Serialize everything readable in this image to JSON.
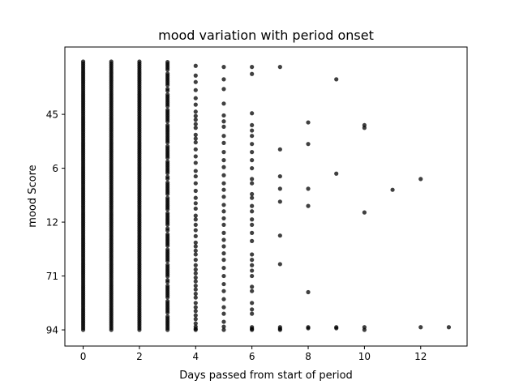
{
  "chart_data": {
    "type": "scatter",
    "title": "mood variation with period onset",
    "xlabel": "Days passed from start of period",
    "ylabel": "mood Score",
    "xlim": [
      -0.65,
      13.65
    ],
    "x_ticks": [
      0,
      2,
      4,
      6,
      8,
      10,
      12
    ],
    "y_tick_labels": [
      "94",
      "71",
      "12",
      "6",
      "45"
    ],
    "y_tick_positions": [
      0,
      1,
      2,
      3,
      4
    ],
    "ylim": [
      -0.3,
      5.25
    ],
    "marker_color": "#000000",
    "marker_alpha": 0.75,
    "grid": false,
    "legend": "none",
    "columns": [
      {
        "x": 0,
        "y_min": 0.0,
        "y_max": 4.98,
        "dense": true
      },
      {
        "x": 1,
        "y_min": 0.0,
        "y_max": 4.98,
        "dense": true
      },
      {
        "x": 2,
        "y_min": 0.0,
        "y_max": 4.98,
        "dense": true
      },
      {
        "x": 3,
        "y_min": 0.0,
        "y_max": 4.97,
        "dense": true,
        "density": 0.85
      }
    ],
    "points": [
      {
        "x": 4,
        "y": 4.9
      },
      {
        "x": 4,
        "y": 4.72
      },
      {
        "x": 4,
        "y": 4.6
      },
      {
        "x": 4,
        "y": 4.45
      },
      {
        "x": 4,
        "y": 4.3
      },
      {
        "x": 4,
        "y": 4.18
      },
      {
        "x": 4,
        "y": 4.05
      },
      {
        "x": 4,
        "y": 3.97
      },
      {
        "x": 4,
        "y": 3.9
      },
      {
        "x": 4,
        "y": 3.82
      },
      {
        "x": 4,
        "y": 3.75
      },
      {
        "x": 4,
        "y": 3.62
      },
      {
        "x": 4,
        "y": 3.55
      },
      {
        "x": 4,
        "y": 3.48
      },
      {
        "x": 4,
        "y": 3.35
      },
      {
        "x": 4,
        "y": 3.22
      },
      {
        "x": 4,
        "y": 3.1
      },
      {
        "x": 4,
        "y": 2.95
      },
      {
        "x": 4,
        "y": 2.85
      },
      {
        "x": 4,
        "y": 2.72
      },
      {
        "x": 4,
        "y": 2.58
      },
      {
        "x": 4,
        "y": 2.45
      },
      {
        "x": 4,
        "y": 2.35
      },
      {
        "x": 4,
        "y": 2.25
      },
      {
        "x": 4,
        "y": 2.12
      },
      {
        "x": 4,
        "y": 2.05
      },
      {
        "x": 4,
        "y": 1.95
      },
      {
        "x": 4,
        "y": 1.85
      },
      {
        "x": 4,
        "y": 1.74
      },
      {
        "x": 4,
        "y": 1.62
      },
      {
        "x": 4,
        "y": 1.55
      },
      {
        "x": 4,
        "y": 1.47
      },
      {
        "x": 4,
        "y": 1.4
      },
      {
        "x": 4,
        "y": 1.3
      },
      {
        "x": 4,
        "y": 1.2
      },
      {
        "x": 4,
        "y": 1.12
      },
      {
        "x": 4,
        "y": 1.05
      },
      {
        "x": 4,
        "y": 0.97
      },
      {
        "x": 4,
        "y": 0.9
      },
      {
        "x": 4,
        "y": 0.82
      },
      {
        "x": 4,
        "y": 0.75
      },
      {
        "x": 4,
        "y": 0.67
      },
      {
        "x": 4,
        "y": 0.6
      },
      {
        "x": 4,
        "y": 0.5
      },
      {
        "x": 4,
        "y": 0.42
      },
      {
        "x": 4,
        "y": 0.35
      },
      {
        "x": 4,
        "y": 0.27
      },
      {
        "x": 4,
        "y": 0.2
      },
      {
        "x": 4,
        "y": 0.12
      },
      {
        "x": 4,
        "y": 0.06
      },
      {
        "x": 4,
        "y": 0.02
      },
      {
        "x": 4,
        "y": 0.0
      },
      {
        "x": 5,
        "y": 4.88
      },
      {
        "x": 5,
        "y": 4.65
      },
      {
        "x": 5,
        "y": 4.47
      },
      {
        "x": 5,
        "y": 4.2
      },
      {
        "x": 5,
        "y": 3.98
      },
      {
        "x": 5,
        "y": 3.87
      },
      {
        "x": 5,
        "y": 3.77
      },
      {
        "x": 5,
        "y": 3.6
      },
      {
        "x": 5,
        "y": 3.47
      },
      {
        "x": 5,
        "y": 3.3
      },
      {
        "x": 5,
        "y": 3.15
      },
      {
        "x": 5,
        "y": 3.02
      },
      {
        "x": 5,
        "y": 2.87
      },
      {
        "x": 5,
        "y": 2.72
      },
      {
        "x": 5,
        "y": 2.6
      },
      {
        "x": 5,
        "y": 2.47
      },
      {
        "x": 5,
        "y": 2.32
      },
      {
        "x": 5,
        "y": 2.2
      },
      {
        "x": 5,
        "y": 2.07
      },
      {
        "x": 5,
        "y": 1.95
      },
      {
        "x": 5,
        "y": 1.8
      },
      {
        "x": 5,
        "y": 1.67
      },
      {
        "x": 5,
        "y": 1.55
      },
      {
        "x": 5,
        "y": 1.42
      },
      {
        "x": 5,
        "y": 1.3
      },
      {
        "x": 5,
        "y": 1.15
      },
      {
        "x": 5,
        "y": 1.0
      },
      {
        "x": 5,
        "y": 0.85
      },
      {
        "x": 5,
        "y": 0.72
      },
      {
        "x": 5,
        "y": 0.57
      },
      {
        "x": 5,
        "y": 0.42
      },
      {
        "x": 5,
        "y": 0.3
      },
      {
        "x": 5,
        "y": 0.15
      },
      {
        "x": 5,
        "y": 0.06
      },
      {
        "x": 5,
        "y": 0.0
      },
      {
        "x": 6,
        "y": 4.88
      },
      {
        "x": 6,
        "y": 4.75
      },
      {
        "x": 6,
        "y": 4.02
      },
      {
        "x": 6,
        "y": 3.8
      },
      {
        "x": 6,
        "y": 3.7
      },
      {
        "x": 6,
        "y": 3.6
      },
      {
        "x": 6,
        "y": 3.45
      },
      {
        "x": 6,
        "y": 3.3
      },
      {
        "x": 6,
        "y": 3.15
      },
      {
        "x": 6,
        "y": 3.0
      },
      {
        "x": 6,
        "y": 2.8
      },
      {
        "x": 6,
        "y": 2.72
      },
      {
        "x": 6,
        "y": 2.52
      },
      {
        "x": 6,
        "y": 2.45
      },
      {
        "x": 6,
        "y": 2.3
      },
      {
        "x": 6,
        "y": 2.2
      },
      {
        "x": 6,
        "y": 2.05
      },
      {
        "x": 6,
        "y": 1.95
      },
      {
        "x": 6,
        "y": 1.8
      },
      {
        "x": 6,
        "y": 1.65
      },
      {
        "x": 6,
        "y": 1.4
      },
      {
        "x": 6,
        "y": 1.3
      },
      {
        "x": 6,
        "y": 1.2
      },
      {
        "x": 6,
        "y": 1.1
      },
      {
        "x": 6,
        "y": 1.0
      },
      {
        "x": 6,
        "y": 0.8
      },
      {
        "x": 6,
        "y": 0.72
      },
      {
        "x": 6,
        "y": 0.5
      },
      {
        "x": 6,
        "y": 0.38
      },
      {
        "x": 6,
        "y": 0.3
      },
      {
        "x": 6,
        "y": 0.05
      },
      {
        "x": 6,
        "y": 0.02
      },
      {
        "x": 6,
        "y": 0.0
      },
      {
        "x": 7,
        "y": 4.88
      },
      {
        "x": 7,
        "y": 3.35
      },
      {
        "x": 7,
        "y": 2.85
      },
      {
        "x": 7,
        "y": 2.62
      },
      {
        "x": 7,
        "y": 2.38
      },
      {
        "x": 7,
        "y": 1.75
      },
      {
        "x": 7,
        "y": 1.22
      },
      {
        "x": 7,
        "y": 0.05
      },
      {
        "x": 7,
        "y": 0.02
      },
      {
        "x": 7,
        "y": 0.0
      },
      {
        "x": 8,
        "y": 3.85
      },
      {
        "x": 8,
        "y": 3.45
      },
      {
        "x": 8,
        "y": 2.62
      },
      {
        "x": 8,
        "y": 2.3
      },
      {
        "x": 8,
        "y": 0.7
      },
      {
        "x": 8,
        "y": 0.05
      },
      {
        "x": 8,
        "y": 0.03
      },
      {
        "x": 9,
        "y": 4.65
      },
      {
        "x": 9,
        "y": 2.9
      },
      {
        "x": 9,
        "y": 0.05
      },
      {
        "x": 9,
        "y": 0.03
      },
      {
        "x": 10,
        "y": 3.8
      },
      {
        "x": 10,
        "y": 3.75
      },
      {
        "x": 10,
        "y": 2.18
      },
      {
        "x": 10,
        "y": 0.05
      },
      {
        "x": 10,
        "y": 0.0
      },
      {
        "x": 11,
        "y": 2.6
      },
      {
        "x": 12,
        "y": 2.8
      },
      {
        "x": 12,
        "y": 0.05
      },
      {
        "x": 13,
        "y": 0.05
      }
    ]
  }
}
